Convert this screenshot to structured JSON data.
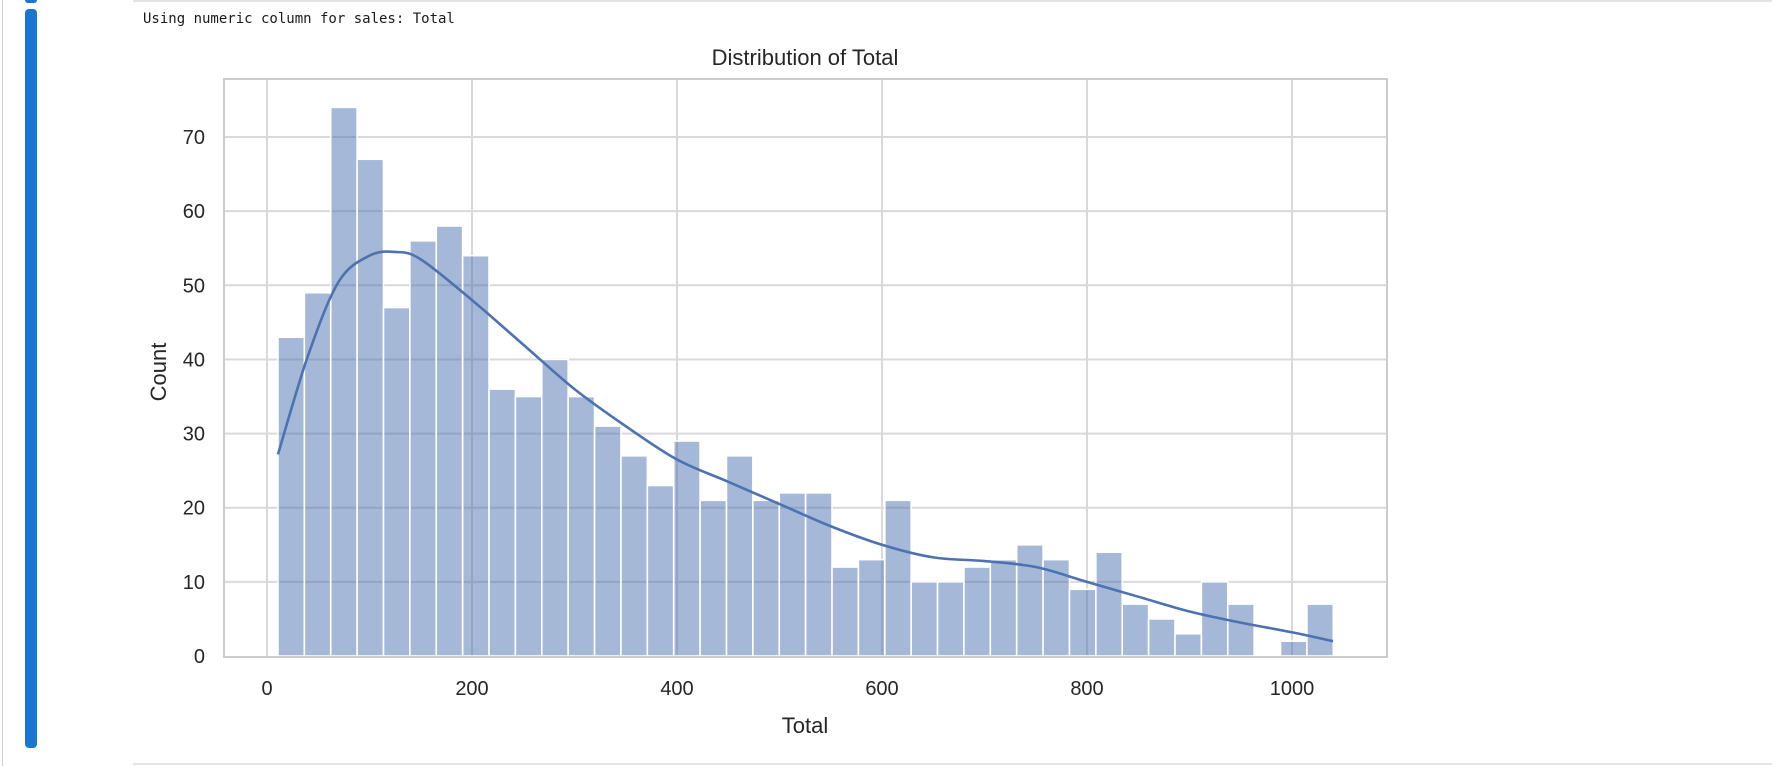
{
  "cell": {
    "output_text": "Using numeric column for sales: Total",
    "accent_color": "#1976d2"
  },
  "chart_data": {
    "type": "bar",
    "subtype": "histogram_with_kde",
    "title": "Distribution of Total",
    "xlabel": "Total",
    "ylabel": "Count",
    "xlim": [
      -36,
      1099
    ],
    "ylim": [
      0,
      78
    ],
    "xticks": [
      0,
      200,
      400,
      600,
      800,
      1000
    ],
    "yticks": [
      0,
      10,
      20,
      30,
      40,
      50,
      60,
      70
    ],
    "grid": true,
    "legend": null,
    "bar_color": "#a5b8d9",
    "line_color": "#4c72b0",
    "bin_start": 10.7,
    "bin_width": 25.74,
    "bins": 40,
    "values": [
      43,
      49,
      74,
      67,
      47,
      56,
      58,
      54,
      36,
      35,
      40,
      35,
      31,
      27,
      23,
      29,
      21,
      27,
      21,
      22,
      22,
      12,
      13,
      21,
      10,
      10,
      12,
      13,
      15,
      13,
      9,
      14,
      7,
      5,
      3,
      10,
      7,
      0,
      2,
      7
    ],
    "kde": {
      "x": [
        10.7,
        40,
        70,
        100,
        125,
        150,
        200,
        250,
        300,
        350,
        400,
        450,
        500,
        550,
        600,
        650,
        700,
        750,
        800,
        850,
        900,
        950,
        1000,
        1040
      ],
      "y": [
        27.2,
        40.5,
        50.5,
        54.0,
        54.5,
        53.5,
        48.0,
        42.0,
        36.0,
        31.0,
        26.5,
        23.5,
        20.5,
        17.5,
        15.0,
        13.3,
        12.8,
        12.0,
        10.0,
        8.0,
        6.0,
        4.5,
        3.2,
        2.0
      ]
    }
  }
}
